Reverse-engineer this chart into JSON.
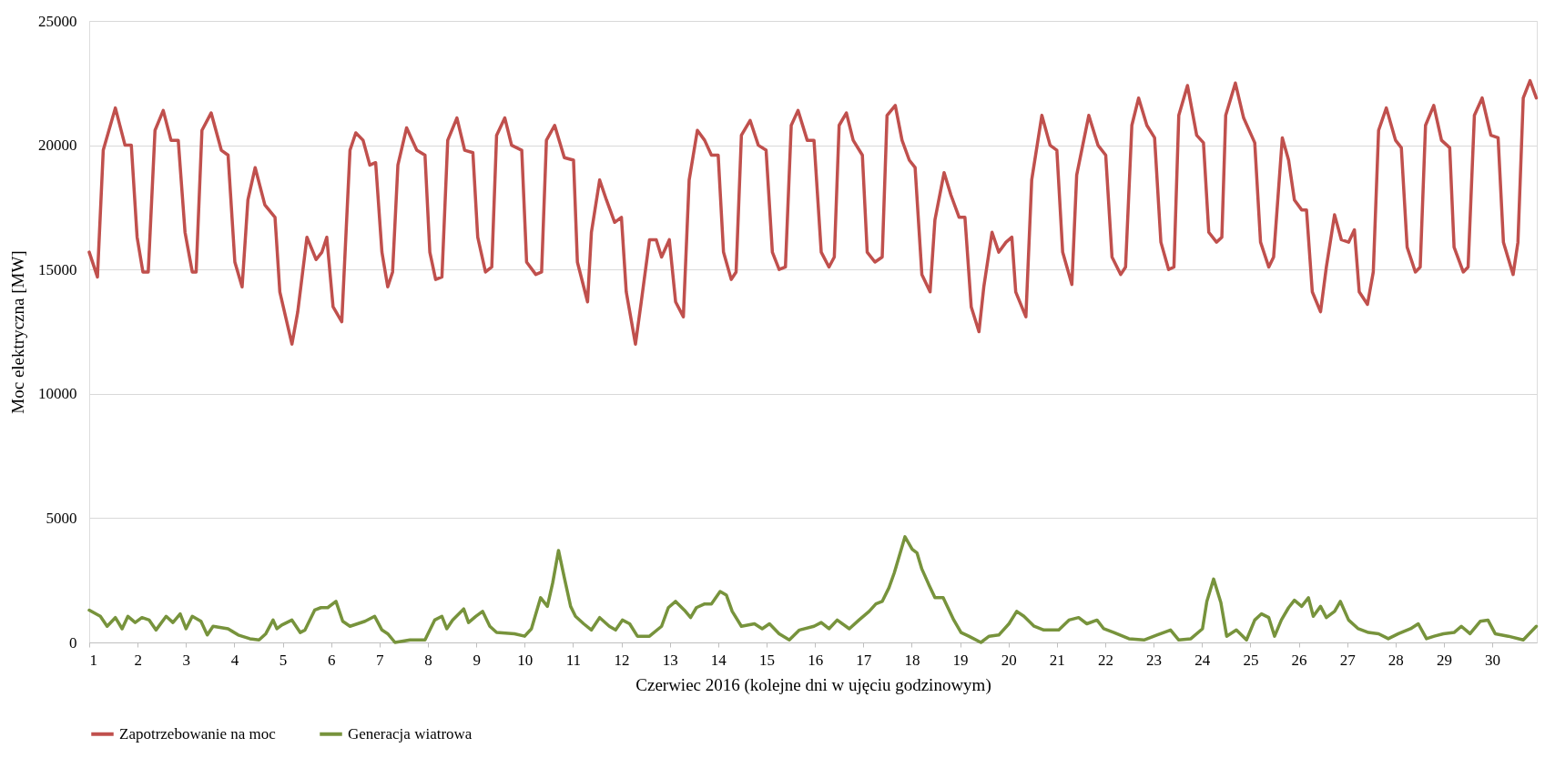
{
  "chart_data": {
    "type": "line",
    "xlabel": "Czerwiec 2016 (kolejne dni w ujęciu godzinowym)",
    "ylabel": "Moc elektryczna [MW]",
    "xlim": [
      1,
      30.92
    ],
    "xticks": [
      1,
      2,
      3,
      4,
      5,
      6,
      7,
      8,
      9,
      10,
      11,
      12,
      13,
      14,
      15,
      16,
      17,
      18,
      19,
      20,
      21,
      22,
      23,
      24,
      25,
      26,
      27,
      28,
      29,
      30
    ],
    "ylim": [
      0,
      25000
    ],
    "yticks": [
      0,
      5000,
      10000,
      15000,
      20000,
      25000
    ],
    "grid": "y",
    "legend": "bottom",
    "marker": "none",
    "line_style": "solid",
    "series": [
      {
        "name": "Zapotrzebowanie na moc",
        "color": "#c0504d",
        "x": [
          1.0,
          1.17,
          1.29,
          1.54,
          1.74,
          1.87,
          1.99,
          2.11,
          2.22,
          2.36,
          2.53,
          2.69,
          2.84,
          2.98,
          3.13,
          3.21,
          3.33,
          3.52,
          3.73,
          3.87,
          4.01,
          4.16,
          4.28,
          4.43,
          4.63,
          4.84,
          4.94,
          5.19,
          5.31,
          5.5,
          5.69,
          5.81,
          5.91,
          6.04,
          6.22,
          6.39,
          6.51,
          6.66,
          6.8,
          6.92,
          7.05,
          7.17,
          7.27,
          7.38,
          7.56,
          7.77,
          7.94,
          8.04,
          8.16,
          8.29,
          8.41,
          8.6,
          8.76,
          8.93,
          9.03,
          9.19,
          9.32,
          9.42,
          9.59,
          9.73,
          9.94,
          10.04,
          10.23,
          10.35,
          10.45,
          10.62,
          10.82,
          11.01,
          11.09,
          11.3,
          11.38,
          11.55,
          11.69,
          11.86,
          12.0,
          12.1,
          12.29,
          12.41,
          12.58,
          12.72,
          12.83,
          12.99,
          13.12,
          13.28,
          13.4,
          13.57,
          13.72,
          13.86,
          14.0,
          14.11,
          14.27,
          14.37,
          14.48,
          14.66,
          14.83,
          14.99,
          15.12,
          15.26,
          15.39,
          15.51,
          15.65,
          15.84,
          15.98,
          16.13,
          16.29,
          16.4,
          16.5,
          16.65,
          16.79,
          16.98,
          17.08,
          17.24,
          17.39,
          17.49,
          17.66,
          17.8,
          17.95,
          18.07,
          18.21,
          18.38,
          18.48,
          18.67,
          18.81,
          18.98,
          19.1,
          19.23,
          19.39,
          19.49,
          19.66,
          19.8,
          19.95,
          20.07,
          20.15,
          20.36,
          20.48,
          20.69,
          20.86,
          21.0,
          21.12,
          21.31,
          21.41,
          21.66,
          21.85,
          22.01,
          22.14,
          22.32,
          22.42,
          22.55,
          22.69,
          22.86,
          23.02,
          23.15,
          23.31,
          23.42,
          23.52,
          23.7,
          23.89,
          24.03,
          24.14,
          24.3,
          24.41,
          24.49,
          24.69,
          24.86,
          25.09,
          25.21,
          25.38,
          25.48,
          25.66,
          25.79,
          25.91,
          26.06,
          26.16,
          26.28,
          26.45,
          26.57,
          26.74,
          26.88,
          27.03,
          27.15,
          27.25,
          27.42,
          27.54,
          27.65,
          27.81,
          28.0,
          28.12,
          28.24,
          28.41,
          28.51,
          28.62,
          28.79,
          28.95,
          29.12,
          29.21,
          29.4,
          29.5,
          29.63,
          29.79,
          29.97,
          30.12,
          30.23,
          30.43,
          30.53,
          30.64,
          30.78,
          30.91
        ],
        "values": [
          15700,
          14700,
          19800,
          21500,
          20000,
          20000,
          16300,
          14900,
          14900,
          20600,
          21400,
          20200,
          20200,
          16500,
          14900,
          14900,
          20600,
          21300,
          19800,
          19600,
          15300,
          14300,
          17800,
          19100,
          17600,
          17100,
          14100,
          12000,
          13300,
          16300,
          15400,
          15700,
          16300,
          13500,
          12900,
          19800,
          20500,
          20200,
          19200,
          19300,
          15700,
          14300,
          14900,
          19200,
          20700,
          19800,
          19600,
          15700,
          14600,
          14700,
          20200,
          21100,
          19800,
          19700,
          16300,
          14900,
          15100,
          20400,
          21100,
          20000,
          19800,
          15300,
          14800,
          14900,
          20200,
          20800,
          19500,
          19400,
          15300,
          13700,
          16500,
          18600,
          17800,
          16900,
          17100,
          14100,
          12000,
          13700,
          16200,
          16200,
          15500,
          16200,
          13700,
          13100,
          18600,
          20600,
          20200,
          19600,
          19600,
          15700,
          14600,
          14900,
          20400,
          21000,
          20000,
          19800,
          15700,
          15000,
          15100,
          20800,
          21400,
          20200,
          20200,
          15700,
          15100,
          15500,
          20800,
          21300,
          20200,
          19600,
          15700,
          15300,
          15500,
          21200,
          21600,
          20200,
          19400,
          19100,
          14800,
          14100,
          17000,
          18900,
          18000,
          17100,
          17100,
          13500,
          12500,
          14300,
          16500,
          15700,
          16100,
          16300,
          14100,
          13100,
          18600,
          21200,
          20000,
          19800,
          15700,
          14400,
          18800,
          21200,
          20000,
          19600,
          15500,
          14800,
          15100,
          20800,
          21900,
          20800,
          20300,
          16100,
          15000,
          15100,
          21200,
          22400,
          20400,
          20100,
          16500,
          16100,
          16300,
          21200,
          22500,
          21100,
          20100,
          16100,
          15100,
          15500,
          20300,
          19400,
          17800,
          17400,
          17400,
          14100,
          13300,
          15100,
          17200,
          16200,
          16100,
          16600,
          14100,
          13600,
          14900,
          20600,
          21500,
          20200,
          19900,
          15900,
          14900,
          15100,
          20800,
          21600,
          20200,
          19900,
          15900,
          14900,
          15100,
          21200,
          21900,
          20400,
          20300,
          16100,
          14800,
          16100,
          21900,
          22600,
          21900
        ]
      },
      {
        "name": "Generacja wiatrowa",
        "color": "#77933c",
        "x": [
          1.0,
          1.23,
          1.37,
          1.54,
          1.68,
          1.8,
          1.95,
          2.09,
          2.24,
          2.38,
          2.59,
          2.73,
          2.88,
          3.0,
          3.13,
          3.31,
          3.44,
          3.56,
          3.87,
          4.08,
          4.32,
          4.51,
          4.65,
          4.8,
          4.88,
          4.98,
          5.19,
          5.36,
          5.46,
          5.66,
          5.79,
          5.93,
          6.1,
          6.24,
          6.39,
          6.7,
          6.9,
          7.05,
          7.17,
          7.32,
          7.63,
          7.94,
          8.14,
          8.29,
          8.39,
          8.51,
          8.74,
          8.84,
          8.99,
          9.13,
          9.28,
          9.42,
          9.79,
          10.0,
          10.14,
          10.33,
          10.47,
          10.58,
          10.7,
          10.82,
          10.95,
          11.05,
          11.22,
          11.38,
          11.55,
          11.75,
          11.88,
          12.02,
          12.17,
          12.33,
          12.58,
          12.83,
          12.97,
          13.12,
          13.3,
          13.43,
          13.55,
          13.72,
          13.86,
          14.04,
          14.17,
          14.29,
          14.48,
          14.75,
          14.91,
          15.06,
          15.26,
          15.47,
          15.68,
          15.98,
          16.13,
          16.29,
          16.46,
          16.71,
          16.91,
          17.12,
          17.26,
          17.39,
          17.53,
          17.64,
          17.86,
          18.01,
          18.11,
          18.21,
          18.36,
          18.48,
          18.65,
          18.87,
          19.02,
          19.18,
          19.43,
          19.6,
          19.8,
          20.01,
          20.17,
          20.32,
          20.53,
          20.73,
          21.04,
          21.25,
          21.45,
          21.62,
          21.83,
          21.97,
          22.18,
          22.49,
          22.8,
          23.21,
          23.35,
          23.52,
          23.77,
          24.01,
          24.1,
          24.24,
          24.39,
          24.51,
          24.71,
          24.92,
          25.09,
          25.23,
          25.38,
          25.5,
          25.64,
          25.79,
          25.91,
          26.06,
          26.2,
          26.3,
          26.45,
          26.57,
          26.74,
          26.86,
          27.03,
          27.23,
          27.44,
          27.65,
          27.85,
          28.06,
          28.31,
          28.47,
          28.64,
          28.8,
          28.99,
          29.21,
          29.36,
          29.54,
          29.75,
          29.91,
          30.06,
          30.33,
          30.64,
          30.91
        ],
        "values": [
          1300,
          1050,
          650,
          1000,
          550,
          1050,
          800,
          1000,
          900,
          500,
          1050,
          800,
          1150,
          550,
          1050,
          850,
          300,
          650,
          550,
          300,
          150,
          100,
          350,
          900,
          550,
          700,
          900,
          400,
          500,
          1300,
          1400,
          1400,
          1650,
          850,
          650,
          850,
          1050,
          500,
          350,
          0,
          100,
          100,
          900,
          1050,
          550,
          900,
          1350,
          800,
          1050,
          1250,
          650,
          400,
          350,
          250,
          550,
          1800,
          1450,
          2400,
          3700,
          2600,
          1450,
          1050,
          750,
          500,
          1000,
          650,
          500,
          900,
          750,
          250,
          250,
          650,
          1400,
          1650,
          1300,
          1000,
          1400,
          1550,
          1550,
          2050,
          1900,
          1250,
          650,
          750,
          550,
          750,
          350,
          100,
          500,
          650,
          800,
          550,
          900,
          550,
          900,
          1250,
          1550,
          1650,
          2200,
          2800,
          4250,
          3750,
          3600,
          2950,
          2300,
          1800,
          1800,
          900,
          400,
          250,
          0,
          250,
          300,
          750,
          1250,
          1050,
          650,
          500,
          500,
          900,
          1000,
          750,
          900,
          550,
          400,
          150,
          100,
          400,
          500,
          100,
          150,
          550,
          1650,
          2550,
          1600,
          250,
          500,
          100,
          900,
          1150,
          1000,
          250,
          900,
          1400,
          1700,
          1450,
          1800,
          1050,
          1450,
          1000,
          1250,
          1650,
          900,
          550,
          400,
          350,
          150,
          350,
          550,
          750,
          150,
          250,
          350,
          400,
          650,
          350,
          850,
          900,
          350,
          250,
          100,
          650
        ]
      }
    ]
  }
}
